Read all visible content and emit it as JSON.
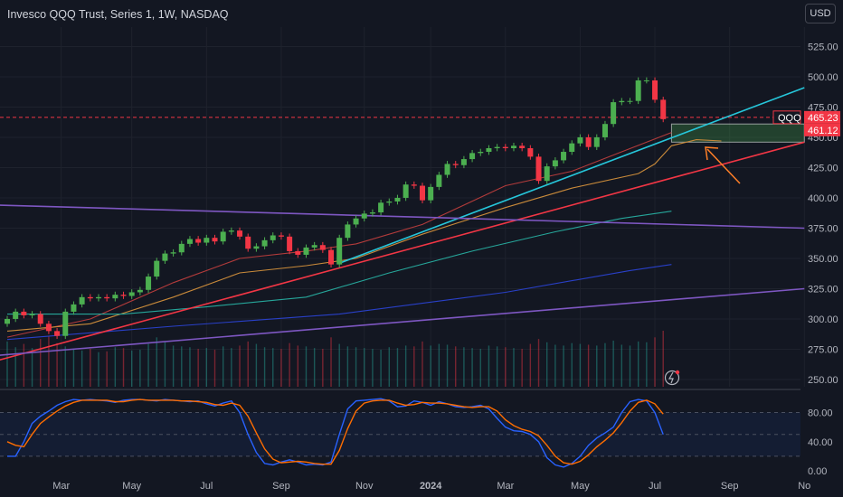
{
  "header": {
    "title": "Invesco QQQ Trust, Series 1, 1W, NASDAQ",
    "currency": "USD"
  },
  "price_tags": {
    "symbol": "QQQ",
    "last": "465.23",
    "secondary": "461.12"
  },
  "colors": {
    "background": "#131722",
    "up": "#4caf50",
    "down": "#f23645",
    "grid": "#1e222d",
    "osc_k": "#2962ff",
    "osc_d": "#ff6d00",
    "trend_cyan": "#26c6da",
    "trend_red": "#f23645",
    "trend_purple": "#7e57c2",
    "arrow": "#ff7f27"
  },
  "chart_data": [
    {
      "type": "candlestick",
      "title": "Invesco QQQ Trust, Series 1, 1W, NASDAQ",
      "y_ticks": [
        250,
        275,
        300,
        325,
        350,
        375,
        400,
        425,
        450,
        475,
        500,
        525
      ],
      "y_tick_labels": [
        "250.00",
        "275.00",
        "300.00",
        "325.00",
        "350.00",
        "375.00",
        "400.00",
        "425.00",
        "450.00",
        "475.00",
        "500.00",
        "525.00"
      ],
      "ylim": [
        244,
        541
      ],
      "x_ticks": [
        "Mar",
        "May",
        "Jul",
        "Sep",
        "Nov",
        "2024",
        "Mar",
        "May",
        "Jul",
        "Sep",
        "No"
      ],
      "x_tick_index": [
        6.5,
        15,
        24,
        33,
        43,
        51,
        60,
        69,
        78,
        87,
        96
      ],
      "scale": "linear",
      "grid": true,
      "series": [
        {
          "name": "QQQ",
          "candles": [
            {
              "o": 296,
              "c": 300
            },
            {
              "o": 300,
              "c": 306
            },
            {
              "o": 306,
              "c": 303
            },
            {
              "o": 303,
              "c": 304
            },
            {
              "o": 304,
              "c": 296
            },
            {
              "o": 296,
              "c": 290
            },
            {
              "o": 290,
              "c": 286
            },
            {
              "o": 286,
              "c": 306
            },
            {
              "o": 306,
              "c": 312
            },
            {
              "o": 312,
              "c": 318
            },
            {
              "o": 318,
              "c": 317
            },
            {
              "o": 317,
              "c": 318
            },
            {
              "o": 318,
              "c": 317
            },
            {
              "o": 317,
              "c": 320
            },
            {
              "o": 320,
              "c": 319
            },
            {
              "o": 319,
              "c": 322
            },
            {
              "o": 322,
              "c": 324
            },
            {
              "o": 324,
              "c": 335
            },
            {
              "o": 335,
              "c": 348
            },
            {
              "o": 348,
              "c": 354
            },
            {
              "o": 354,
              "c": 355
            },
            {
              "o": 355,
              "c": 362
            },
            {
              "o": 362,
              "c": 366
            },
            {
              "o": 366,
              "c": 363
            },
            {
              "o": 363,
              "c": 367
            },
            {
              "o": 367,
              "c": 364
            },
            {
              "o": 364,
              "c": 372
            },
            {
              "o": 372,
              "c": 373
            },
            {
              "o": 373,
              "c": 368
            },
            {
              "o": 368,
              "c": 358
            },
            {
              "o": 358,
              "c": 360
            },
            {
              "o": 360,
              "c": 365
            },
            {
              "o": 365,
              "c": 369
            },
            {
              "o": 369,
              "c": 368
            },
            {
              "o": 368,
              "c": 356
            },
            {
              "o": 356,
              "c": 353
            },
            {
              "o": 353,
              "c": 359
            },
            {
              "o": 359,
              "c": 361
            },
            {
              "o": 361,
              "c": 357
            },
            {
              "o": 357,
              "c": 345
            },
            {
              "o": 345,
              "c": 367
            },
            {
              "o": 367,
              "c": 378
            },
            {
              "o": 378,
              "c": 383
            },
            {
              "o": 383,
              "c": 387
            },
            {
              "o": 387,
              "c": 388
            },
            {
              "o": 388,
              "c": 396
            },
            {
              "o": 396,
              "c": 397
            },
            {
              "o": 397,
              "c": 400
            },
            {
              "o": 400,
              "c": 411
            },
            {
              "o": 411,
              "c": 410
            },
            {
              "o": 410,
              "c": 398
            },
            {
              "o": 398,
              "c": 409
            },
            {
              "o": 409,
              "c": 419
            },
            {
              "o": 419,
              "c": 428
            },
            {
              "o": 428,
              "c": 427
            },
            {
              "o": 427,
              "c": 432
            },
            {
              "o": 432,
              "c": 437
            },
            {
              "o": 437,
              "c": 438
            },
            {
              "o": 438,
              "c": 441
            },
            {
              "o": 441,
              "c": 442
            },
            {
              "o": 442,
              "c": 441
            },
            {
              "o": 441,
              "c": 443
            },
            {
              "o": 443,
              "c": 441
            },
            {
              "o": 441,
              "c": 434
            },
            {
              "o": 434,
              "c": 414
            },
            {
              "o": 414,
              "c": 426
            },
            {
              "o": 426,
              "c": 431
            },
            {
              "o": 431,
              "c": 438
            },
            {
              "o": 438,
              "c": 445
            },
            {
              "o": 445,
              "c": 450
            },
            {
              "o": 450,
              "c": 442
            },
            {
              "o": 442,
              "c": 450
            },
            {
              "o": 450,
              "c": 461
            },
            {
              "o": 461,
              "c": 479
            },
            {
              "o": 479,
              "c": 480
            },
            {
              "o": 480,
              "c": 480
            },
            {
              "o": 480,
              "c": 497
            },
            {
              "o": 497,
              "c": 497
            },
            {
              "o": 497,
              "c": 481
            },
            {
              "o": 481,
              "c": 465
            }
          ]
        },
        {
          "name": "",
          "role": "moving-average-fast",
          "color": "#b23b3b",
          "points": [
            [
              0,
              285
            ],
            [
              10,
              300
            ],
            [
              20,
              330
            ],
            [
              28,
              350
            ],
            [
              36,
              356
            ],
            [
              42,
              362
            ],
            [
              50,
              378
            ],
            [
              60,
              410
            ],
            [
              68,
              422
            ],
            [
              74,
              438
            ],
            [
              80,
              454
            ]
          ]
        },
        {
          "name": "",
          "role": "moving-average-slow",
          "color": "#c98a3a",
          "points": [
            [
              0,
              290
            ],
            [
              10,
              296
            ],
            [
              20,
              318
            ],
            [
              28,
              338
            ],
            [
              36,
              344
            ],
            [
              42,
              350
            ],
            [
              50,
              370
            ],
            [
              60,
              392
            ],
            [
              68,
              408
            ],
            [
              76,
              420
            ],
            [
              78,
              428
            ],
            [
              80,
              443
            ],
            [
              83,
              448
            ],
            [
              86,
              447
            ]
          ]
        },
        {
          "name": "",
          "role": "moving-average-long",
          "color": "#26a69a",
          "points": [
            [
              0,
              304
            ],
            [
              14,
              304
            ],
            [
              24,
              310
            ],
            [
              36,
              318
            ],
            [
              46,
              338
            ],
            [
              56,
              356
            ],
            [
              66,
              372
            ],
            [
              74,
              383
            ],
            [
              80,
              389
            ]
          ]
        },
        {
          "name": "",
          "role": "moving-average-200",
          "color": "#2940c8",
          "points": [
            [
              0,
              283
            ],
            [
              20,
              294
            ],
            [
              40,
              304
            ],
            [
              60,
              322
            ],
            [
              75,
              340
            ],
            [
              80,
              345
            ]
          ]
        },
        {
          "name": "",
          "role": "trendline",
          "color": "#26c6da",
          "points": [
            [
              40,
              346
            ],
            [
              96,
              491
            ]
          ]
        },
        {
          "name": "",
          "role": "trendline",
          "color": "#f23645",
          "points": [
            [
              -1,
              266
            ],
            [
              96,
              446
            ]
          ]
        },
        {
          "name": "",
          "role": "trendline",
          "color": "#7e57c2",
          "points": [
            [
              -1,
              394
            ],
            [
              96,
              375
            ]
          ]
        },
        {
          "name": "",
          "role": "trendline",
          "color": "#7e57c2",
          "points": [
            [
              -1,
              270
            ],
            [
              96,
              325
            ]
          ]
        }
      ],
      "annotations": {
        "dashed_price_line": 466.5,
        "zone": {
          "x": [
            80,
            96
          ],
          "y": [
            446,
            461
          ]
        }
      },
      "volume": [
        55,
        48,
        52,
        47,
        58,
        62,
        53,
        49,
        45,
        44,
        46,
        42,
        43,
        48,
        47,
        44,
        45,
        52,
        60,
        55,
        50,
        49,
        48,
        46,
        47,
        45,
        49,
        47,
        50,
        55,
        52,
        48,
        47,
        46,
        53,
        50,
        49,
        47,
        46,
        60,
        52,
        49,
        48,
        47,
        46,
        45,
        48,
        47,
        50,
        49,
        55,
        50,
        52,
        51,
        49,
        48,
        47,
        46,
        50,
        49,
        48,
        47,
        46,
        52,
        58,
        54,
        51,
        50,
        53,
        52,
        51,
        50,
        53,
        56,
        51,
        50,
        55,
        54,
        60,
        68
      ]
    },
    {
      "type": "line",
      "title": "",
      "y_ticks": [
        0,
        20,
        40,
        50,
        80,
        100
      ],
      "y_tick_labels": [
        "0.00",
        "",
        "40.00",
        "",
        "80.00",
        ""
      ],
      "ylim": [
        -5,
        108
      ],
      "bands": [
        20,
        50,
        80
      ],
      "series": [
        {
          "name": "",
          "color": "#2962ff",
          "values": [
            20,
            20,
            40,
            65,
            75,
            82,
            90,
            95,
            98,
            97,
            98,
            97,
            96,
            94,
            97,
            98,
            98,
            97,
            96,
            98,
            97,
            96,
            95,
            96,
            92,
            89,
            93,
            96,
            80,
            50,
            25,
            10,
            8,
            12,
            15,
            12,
            8,
            9,
            8,
            12,
            50,
            85,
            96,
            97,
            98,
            99,
            96,
            88,
            89,
            96,
            94,
            90,
            95,
            92,
            88,
            87,
            88,
            90,
            85,
            72,
            60,
            55,
            54,
            50,
            40,
            18,
            8,
            5,
            10,
            20,
            35,
            45,
            52,
            60,
            80,
            95,
            98,
            96,
            80,
            50
          ]
        },
        {
          "name": "",
          "color": "#ff6d00",
          "values": [
            40,
            35,
            33,
            50,
            65,
            74,
            82,
            89,
            94,
            97,
            97,
            97,
            97,
            95,
            95,
            97,
            98,
            97,
            97,
            97,
            97,
            96,
            96,
            95,
            94,
            91,
            90,
            93,
            90,
            75,
            52,
            30,
            16,
            11,
            12,
            13,
            12,
            10,
            9,
            9,
            28,
            58,
            82,
            93,
            96,
            97,
            97,
            93,
            90,
            91,
            94,
            93,
            93,
            92,
            90,
            88,
            87,
            88,
            88,
            82,
            70,
            62,
            57,
            54,
            48,
            35,
            20,
            11,
            9,
            13,
            22,
            33,
            42,
            52,
            66,
            82,
            94,
            97,
            92,
            78
          ]
        }
      ]
    }
  ]
}
